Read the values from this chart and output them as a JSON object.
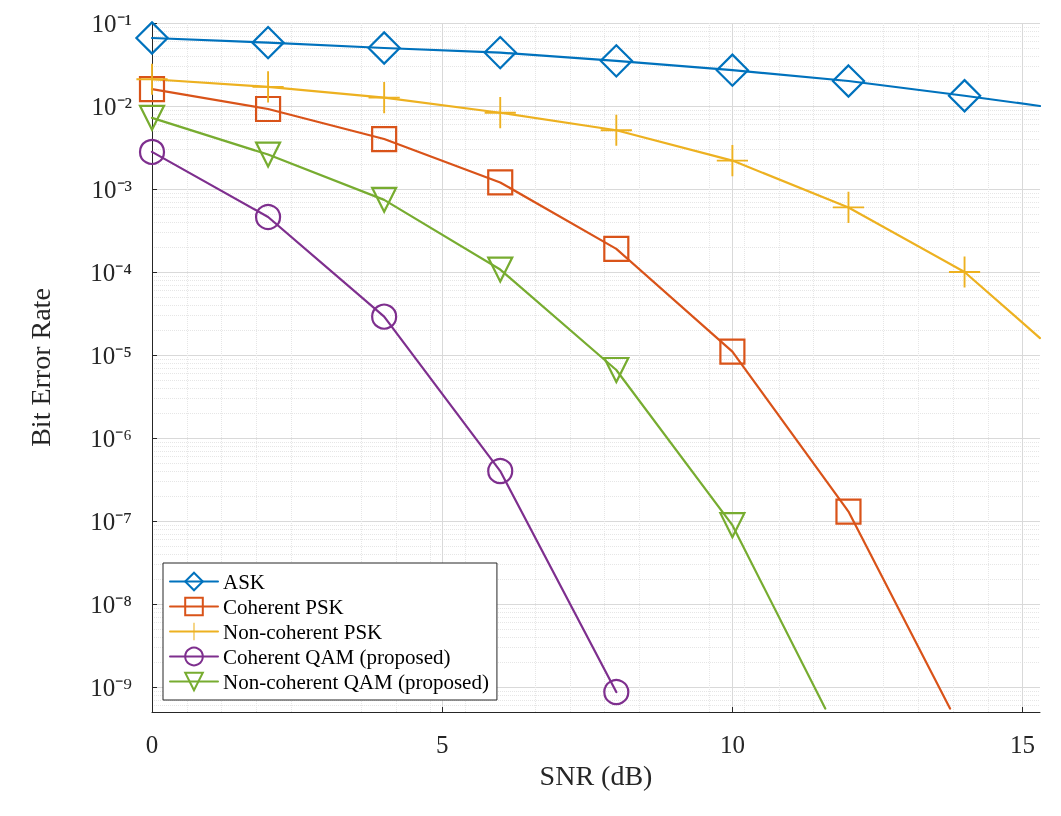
{
  "chart_data": {
    "type": "line",
    "xlabel": "SNR (dB)",
    "ylabel": "Bit Error Rate",
    "log": "y",
    "grid": true,
    "legend": "bottom left",
    "xlim": [
      0,
      15.3
    ],
    "xticks": [
      0,
      5,
      10,
      15
    ],
    "ylim": [
      5e-10,
      0.1
    ],
    "yticks": [
      {
        "value": 1e-09,
        "label": "10⁻⁹"
      },
      {
        "value": 1e-08,
        "label": "10⁻⁸"
      },
      {
        "value": 1e-07,
        "label": "10⁻⁷"
      },
      {
        "value": 1e-06,
        "label": "10⁻⁶"
      },
      {
        "value": 1e-05,
        "label": "10⁻⁵"
      },
      {
        "value": 0.0001,
        "label": "10⁻⁴"
      },
      {
        "value": 0.001,
        "label": "10⁻³"
      },
      {
        "value": 0.01,
        "label": "10⁻²"
      },
      {
        "value": 0.1,
        "label": "10⁻¹"
      }
    ],
    "series": [
      {
        "name": "ASK",
        "color": "#0072bd",
        "marker": "diamond",
        "x": [
          0,
          2,
          4,
          6,
          8,
          10,
          12,
          14,
          15.3
        ],
        "values": [
          0.066,
          0.058,
          0.05,
          0.044,
          0.035,
          0.027,
          0.02,
          0.0133,
          0.01
        ]
      },
      {
        "name": "Coherent PSK",
        "color": "#d95319",
        "marker": "square",
        "x": [
          0,
          2,
          4,
          6,
          8,
          10,
          12,
          13.75
        ],
        "values": [
          0.016,
          0.0092,
          0.004,
          0.0012,
          0.00019,
          1.1e-05,
          1.3e-07,
          5.5e-10
        ]
      },
      {
        "name": "Non-coherent PSK",
        "color": "#edb120",
        "marker": "cross",
        "x": [
          0,
          2,
          4,
          6,
          8,
          10,
          12,
          14,
          15.3
        ],
        "values": [
          0.021,
          0.017,
          0.0126,
          0.0083,
          0.0051,
          0.0022,
          0.0006,
          0.0001,
          1.6e-05
        ]
      },
      {
        "name": "Coherent QAM (proposed)",
        "color": "#7e2f8e",
        "marker": "circle",
        "x": [
          0,
          2,
          4,
          6,
          8
        ],
        "values": [
          0.0028,
          0.00046,
          2.9e-05,
          4e-07,
          8.7e-10
        ]
      },
      {
        "name": "Non-coherent QAM (proposed)",
        "color": "#77ac30",
        "marker": "triangle",
        "x": [
          0,
          2,
          4,
          6,
          8,
          10,
          11.6
        ],
        "values": [
          0.0072,
          0.0026,
          0.00074,
          0.000107,
          6.6e-06,
          8.9e-08,
          5.5e-10
        ]
      }
    ]
  }
}
